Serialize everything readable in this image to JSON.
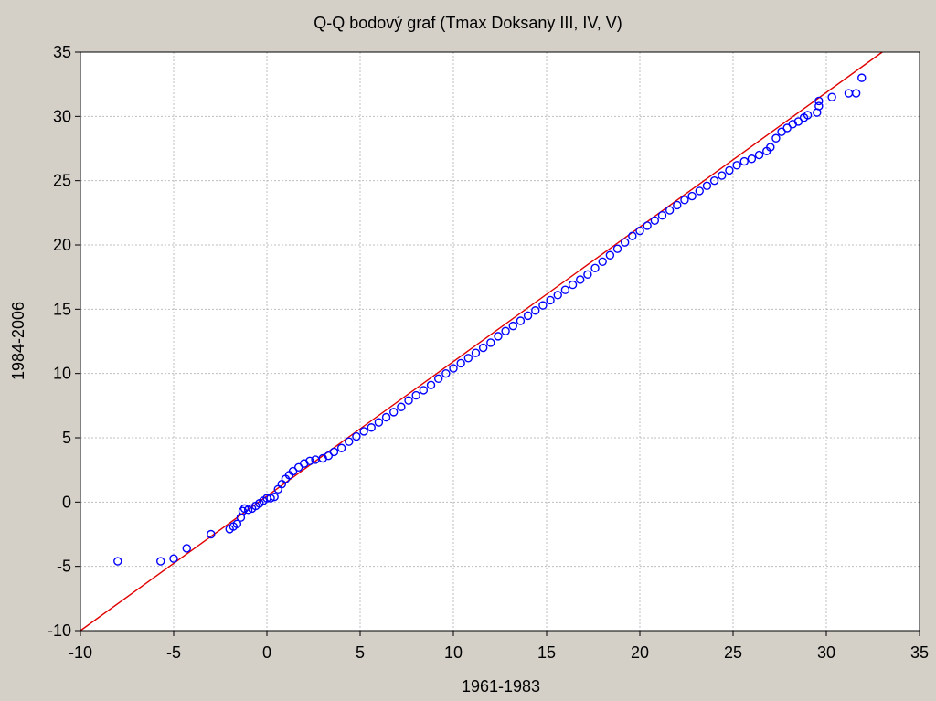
{
  "chart_data": {
    "type": "scatter",
    "title": "Q-Q bodový graf (Tmax Doksany III, IV, V)",
    "xlabel": "1961-1983",
    "ylabel": "1984-2006",
    "xlim": [
      -10,
      35
    ],
    "ylim": [
      -10,
      35
    ],
    "xticks": [
      "-10",
      "-5",
      "0",
      "5",
      "10",
      "15",
      "20",
      "25",
      "30",
      "35"
    ],
    "yticks": [
      "-10",
      "-5",
      "0",
      "5",
      "10",
      "15",
      "20",
      "25",
      "30",
      "35"
    ],
    "grid": true,
    "colors": {
      "points": "#0000ff",
      "line": "#e00000",
      "background": "#d4d0c8",
      "plot_area": "#ffffff",
      "grid": "#bfbfbf"
    },
    "reference_line": {
      "x": [
        -10,
        33
      ],
      "y": [
        -10,
        35
      ]
    },
    "series": [
      {
        "points": [
          [
            -8.0,
            -4.6
          ],
          [
            -5.7,
            -4.6
          ],
          [
            -5.0,
            -4.4
          ],
          [
            -4.3,
            -3.6
          ],
          [
            -3.0,
            -2.5
          ],
          [
            -2.0,
            -2.1
          ],
          [
            -1.8,
            -1.9
          ],
          [
            -1.6,
            -1.7
          ],
          [
            -1.4,
            -1.2
          ],
          [
            -1.3,
            -0.7
          ],
          [
            -1.2,
            -0.5
          ],
          [
            -1.0,
            -0.6
          ],
          [
            -0.8,
            -0.5
          ],
          [
            -0.6,
            -0.3
          ],
          [
            -0.4,
            -0.1
          ],
          [
            -0.2,
            0.1
          ],
          [
            0.0,
            0.3
          ],
          [
            0.2,
            0.3
          ],
          [
            0.4,
            0.4
          ],
          [
            0.6,
            1.0
          ],
          [
            0.8,
            1.4
          ],
          [
            1.0,
            1.8
          ],
          [
            1.2,
            2.1
          ],
          [
            1.4,
            2.4
          ],
          [
            1.7,
            2.7
          ],
          [
            2.0,
            3.0
          ],
          [
            2.3,
            3.2
          ],
          [
            2.6,
            3.3
          ],
          [
            3.0,
            3.4
          ],
          [
            3.3,
            3.6
          ],
          [
            3.6,
            3.9
          ],
          [
            4.0,
            4.2
          ],
          [
            4.4,
            4.7
          ],
          [
            4.8,
            5.1
          ],
          [
            5.2,
            5.5
          ],
          [
            5.6,
            5.8
          ],
          [
            6.0,
            6.2
          ],
          [
            6.4,
            6.6
          ],
          [
            6.8,
            7.0
          ],
          [
            7.2,
            7.4
          ],
          [
            7.6,
            7.9
          ],
          [
            8.0,
            8.3
          ],
          [
            8.4,
            8.7
          ],
          [
            8.8,
            9.1
          ],
          [
            9.2,
            9.6
          ],
          [
            9.6,
            10.0
          ],
          [
            10.0,
            10.4
          ],
          [
            10.4,
            10.8
          ],
          [
            10.8,
            11.2
          ],
          [
            11.2,
            11.6
          ],
          [
            11.6,
            12.0
          ],
          [
            12.0,
            12.4
          ],
          [
            12.4,
            12.9
          ],
          [
            12.8,
            13.3
          ],
          [
            13.2,
            13.7
          ],
          [
            13.6,
            14.1
          ],
          [
            14.0,
            14.5
          ],
          [
            14.4,
            14.9
          ],
          [
            14.8,
            15.3
          ],
          [
            15.2,
            15.7
          ],
          [
            15.6,
            16.1
          ],
          [
            16.0,
            16.5
          ],
          [
            16.4,
            16.9
          ],
          [
            16.8,
            17.3
          ],
          [
            17.2,
            17.7
          ],
          [
            17.6,
            18.2
          ],
          [
            18.0,
            18.7
          ],
          [
            18.4,
            19.2
          ],
          [
            18.8,
            19.7
          ],
          [
            19.2,
            20.2
          ],
          [
            19.6,
            20.7
          ],
          [
            20.0,
            21.1
          ],
          [
            20.4,
            21.5
          ],
          [
            20.8,
            21.9
          ],
          [
            21.2,
            22.3
          ],
          [
            21.6,
            22.7
          ],
          [
            22.0,
            23.1
          ],
          [
            22.4,
            23.5
          ],
          [
            22.8,
            23.8
          ],
          [
            23.2,
            24.2
          ],
          [
            23.6,
            24.6
          ],
          [
            24.0,
            25.0
          ],
          [
            24.4,
            25.4
          ],
          [
            24.8,
            25.8
          ],
          [
            25.2,
            26.2
          ],
          [
            25.6,
            26.5
          ],
          [
            26.0,
            26.7
          ],
          [
            26.4,
            27.0
          ],
          [
            26.8,
            27.3
          ],
          [
            27.0,
            27.6
          ],
          [
            27.3,
            28.3
          ],
          [
            27.6,
            28.8
          ],
          [
            27.9,
            29.1
          ],
          [
            28.2,
            29.4
          ],
          [
            28.5,
            29.6
          ],
          [
            28.8,
            29.9
          ],
          [
            29.0,
            30.1
          ],
          [
            29.5,
            30.3
          ],
          [
            29.6,
            30.8
          ],
          [
            29.6,
            31.2
          ],
          [
            30.3,
            31.5
          ],
          [
            31.2,
            31.8
          ],
          [
            31.6,
            31.8
          ],
          [
            31.9,
            33.0
          ]
        ]
      }
    ]
  }
}
